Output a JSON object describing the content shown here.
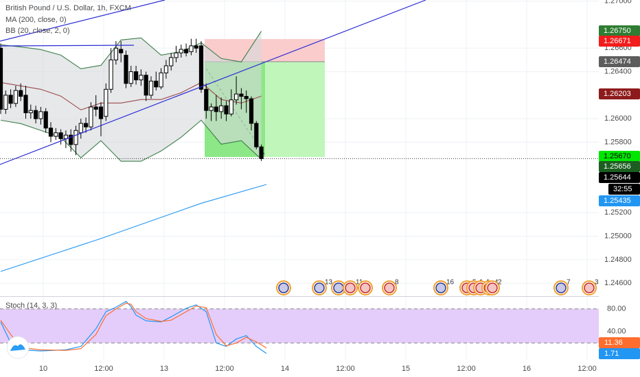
{
  "chart_data": {
    "type": "candlestick",
    "title": "British Pound / U.S. Dollar, 1h, FXCM",
    "indicator_labels": [
      "MA (200, close, 0)",
      "BB (20, close, 2, 0)"
    ],
    "ylim": [
      1.2449,
      1.2701
    ],
    "yticks": [
      {
        "value": 1.27,
        "label": "1.27000"
      },
      {
        "value": 1.266,
        "label": "1.26600"
      },
      {
        "value": 1.264,
        "label": "1.26400"
      },
      {
        "value": 1.26,
        "label": "1.26000"
      },
      {
        "value": 1.258,
        "label": "1.25800"
      },
      {
        "value": 1.252,
        "label": "1.25200"
      },
      {
        "value": 1.25,
        "label": "1.25000"
      },
      {
        "value": 1.248,
        "label": "1.24800"
      },
      {
        "value": 1.246,
        "label": "1.24600"
      }
    ],
    "x_labels": [
      "10",
      "12:00",
      "13",
      "12:00",
      "14",
      "12:00",
      "15",
      "12:00",
      "16",
      "12:00"
    ],
    "grid": true,
    "up_color": "#ffffff",
    "down_color": "#000000",
    "open": [
      1.266,
      1.2608,
      1.262,
      1.2613,
      1.2624,
      1.262,
      1.2605,
      1.2607,
      1.26,
      1.2606,
      1.2592,
      1.2585,
      1.2588,
      1.2583,
      1.2586,
      1.2578,
      1.2588,
      1.2596,
      1.2593,
      1.261,
      1.261,
      1.2602,
      1.2625,
      1.265,
      1.2659,
      1.2654,
      1.263,
      1.264,
      1.2633,
      1.2637,
      1.262,
      1.2632,
      1.2627,
      1.2639,
      1.2645,
      1.2652,
      1.2656,
      1.2659,
      1.2657,
      1.2662,
      1.2662,
      1.2625,
      1.2607,
      1.261,
      1.2606,
      1.2611,
      1.2604,
      1.2616,
      1.2621,
      1.2619,
      1.2617,
      1.2596,
      1.2576
    ],
    "high": [
      1.2664,
      1.2624,
      1.2625,
      1.2628,
      1.263,
      1.2628,
      1.2612,
      1.2611,
      1.261,
      1.2609,
      1.2597,
      1.2592,
      1.2591,
      1.259,
      1.2591,
      1.2594,
      1.26,
      1.2601,
      1.2614,
      1.262,
      1.2614,
      1.263,
      1.266,
      1.2666,
      1.2666,
      1.2658,
      1.2645,
      1.2645,
      1.2642,
      1.264,
      1.2636,
      1.264,
      1.2643,
      1.265,
      1.2656,
      1.2662,
      1.2663,
      1.2664,
      1.2668,
      1.2668,
      1.2666,
      1.263,
      1.2613,
      1.262,
      1.2618,
      1.2615,
      1.2625,
      1.2636,
      1.2626,
      1.2624,
      1.2619,
      1.2598,
      1.2578
    ],
    "low": [
      1.2604,
      1.2604,
      1.2609,
      1.261,
      1.2615,
      1.26,
      1.26,
      1.2596,
      1.2595,
      1.2588,
      1.258,
      1.2582,
      1.2578,
      1.2575,
      1.2572,
      1.2569,
      1.2583,
      1.2588,
      1.259,
      1.2602,
      1.2585,
      1.2598,
      1.2622,
      1.2646,
      1.2648,
      1.2626,
      1.2627,
      1.2629,
      1.2628,
      1.2615,
      1.2617,
      1.2624,
      1.2625,
      1.2634,
      1.2641,
      1.2648,
      1.2652,
      1.2653,
      1.2654,
      1.2656,
      1.2622,
      1.26,
      1.2598,
      1.2598,
      1.26,
      1.2598,
      1.2602,
      1.2612,
      1.2608,
      1.2605,
      1.259,
      1.2574,
      1.2564
    ],
    "close": [
      1.2608,
      1.262,
      1.2613,
      1.2624,
      1.2619,
      1.2605,
      1.2607,
      1.26,
      1.2606,
      1.2592,
      1.2585,
      1.2588,
      1.2583,
      1.2586,
      1.2578,
      1.259,
      1.2596,
      1.2593,
      1.261,
      1.2608,
      1.26,
      1.2625,
      1.265,
      1.266,
      1.2656,
      1.263,
      1.264,
      1.2633,
      1.2637,
      1.262,
      1.2632,
      1.2627,
      1.2639,
      1.2645,
      1.2652,
      1.2656,
      1.2659,
      1.2656,
      1.2662,
      1.266,
      1.2625,
      1.2607,
      1.261,
      1.2606,
      1.2611,
      1.2604,
      1.2616,
      1.2621,
      1.2619,
      1.2617,
      1.2596,
      1.2576,
      1.2566
    ],
    "lines": [
      {
        "name": "bb-upper",
        "color": "#3e7f4a",
        "x": [
          0,
          4,
          8,
          12,
          16,
          20,
          24,
          28,
          32,
          36,
          40,
          44,
          48,
          52
        ],
        "values": [
          1.26629,
          1.26611,
          1.26588,
          1.26541,
          1.26425,
          1.26454,
          1.2667,
          1.26687,
          1.26541,
          1.26571,
          1.26646,
          1.26512,
          1.26483,
          1.26745
        ]
      },
      {
        "name": "bb-lower",
        "color": "#3e7f4a",
        "x": [
          0,
          4,
          8,
          12,
          16,
          20,
          24,
          28,
          32,
          36,
          40,
          44,
          48,
          52
        ],
        "values": [
          1.25987,
          1.25958,
          1.259,
          1.25842,
          1.25667,
          1.25813,
          1.25638,
          1.25638,
          1.25725,
          1.25842,
          1.25987,
          1.25783,
          1.25813,
          1.25655
        ]
      },
      {
        "name": "bb-basis",
        "color": "#9c4a4a",
        "x": [
          0,
          4,
          8,
          12,
          16,
          20,
          24,
          28,
          32,
          36,
          40,
          44,
          48,
          52
        ],
        "values": [
          1.26308,
          1.26279,
          1.2625,
          1.26192,
          1.26075,
          1.26133,
          1.26133,
          1.26163,
          1.26163,
          1.26221,
          1.26308,
          1.26163,
          1.26133,
          1.26192
        ]
      },
      {
        "name": "ma-200",
        "color": "#2196f3",
        "x": [
          0,
          10,
          20,
          30,
          40,
          53
        ],
        "values": [
          1.247,
          1.2484,
          1.2498,
          1.2513,
          1.2528,
          1.2544
        ]
      }
    ],
    "price_badges": [
      {
        "value": 1.2675,
        "label": "1.26750",
        "color": "#2e7d32",
        "text_color": "#ffffff"
      },
      {
        "value": 1.26671,
        "label": "1.26671",
        "color": "#f21c1c",
        "text_color": "#ffffff"
      },
      {
        "value": 1.26474,
        "label": "1.26474",
        "color": "#5d5d5d",
        "text_color": "#ffffff"
      },
      {
        "value": 1.26203,
        "label": "1.26203",
        "color": "#8e1b1b",
        "text_color": "#ffffff"
      },
      {
        "value": 1.2567,
        "label": "1.25670",
        "color": "#00e600",
        "text_color": "#000000"
      },
      {
        "value": 1.25656,
        "label": "1.25656",
        "color": "#1b5e20",
        "text_color": "#ffffff"
      },
      {
        "value": 1.25644,
        "label": "1.25644",
        "color": "#000000",
        "text_color": "#ffffff"
      },
      {
        "value": 1.25435,
        "label": "1.25435",
        "color": "#2196f3",
        "text_color": "#ffffff"
      }
    ],
    "countdown": "32:55",
    "event_labels": [
      "13",
      "11",
      "8",
      "16",
      "5",
      "1",
      "1",
      "4",
      "2",
      "7",
      "3"
    ],
    "stoch": {
      "type": "line",
      "title": "Stoch (14, 3, 3)",
      "ylim": [
        0,
        100
      ],
      "yticks": [
        {
          "value": 80,
          "label": "80.00"
        },
        {
          "value": 40,
          "label": "40.00"
        }
      ],
      "band": [
        20,
        80
      ],
      "x": [
        0,
        2,
        4,
        8,
        13,
        16,
        19,
        21,
        23,
        25,
        26,
        27,
        29,
        32,
        34,
        37,
        39,
        41,
        43,
        45,
        47,
        49,
        51,
        53
      ],
      "series": [
        {
          "name": "%K",
          "color": "#2196f3",
          "values": [
            57,
            20,
            8,
            6,
            8,
            14,
            45,
            75,
            83,
            93,
            84,
            69,
            59,
            57,
            66,
            81,
            87,
            75,
            20,
            14,
            27,
            33,
            14,
            1.71
          ]
        },
        {
          "name": "%D",
          "color": "#ff6d2e",
          "values": [
            60,
            35,
            12,
            8,
            7,
            10,
            35,
            68,
            80,
            90,
            88,
            75,
            63,
            58,
            60,
            75,
            85,
            82,
            35,
            15,
            20,
            30,
            22,
            11.36
          ]
        }
      ]
    }
  }
}
